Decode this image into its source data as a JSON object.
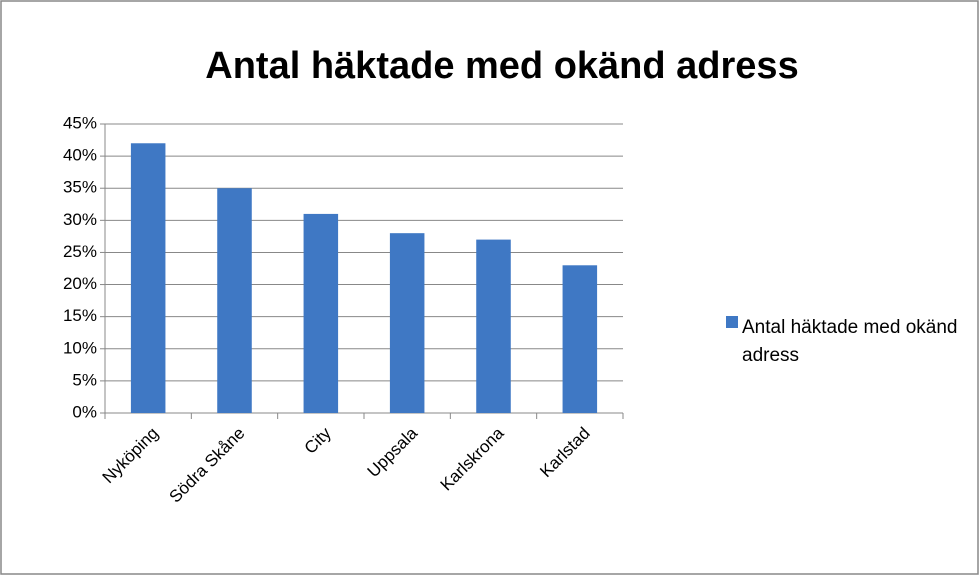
{
  "chart_data": {
    "type": "bar",
    "title": "Antal häktade med okänd adress",
    "categories": [
      "Nyköping",
      "Södra Skåne",
      "City",
      "Uppsala",
      "Karlskrona",
      "Karlstad"
    ],
    "series": [
      {
        "name": "Antal häktade med okänd adress",
        "color": "#3f78c4",
        "values": [
          42,
          35,
          31,
          28,
          27,
          23
        ]
      }
    ],
    "ylim": [
      0,
      45
    ],
    "yticks": [
      {
        "value": 0,
        "label": "0%"
      },
      {
        "value": 5,
        "label": "5%"
      },
      {
        "value": 10,
        "label": "10%"
      },
      {
        "value": 15,
        "label": "15%"
      },
      {
        "value": 20,
        "label": "20%"
      },
      {
        "value": 25,
        "label": "25%"
      },
      {
        "value": 30,
        "label": "30%"
      },
      {
        "value": 35,
        "label": "35%"
      },
      {
        "value": 40,
        "label": "40%"
      },
      {
        "value": 45,
        "label": "45%"
      }
    ],
    "grid": true,
    "legend": "right"
  }
}
